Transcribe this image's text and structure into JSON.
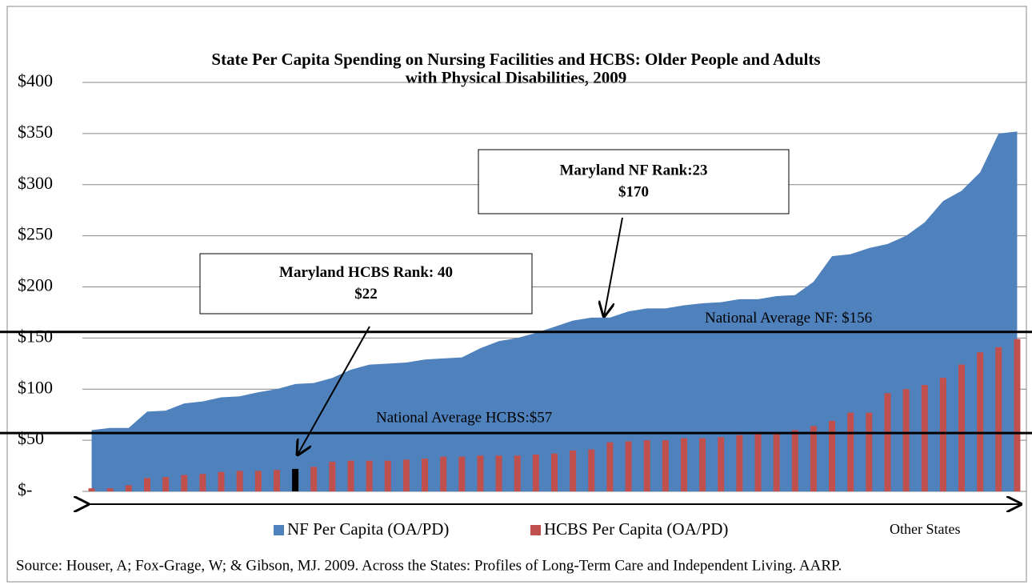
{
  "chart_data": {
    "type": "area-bar",
    "title": [
      "State Per Capita Spending on Nursing Facilities and HCBS: Older People and Adults",
      "with Physical Disabilities, 2009"
    ],
    "categories": [
      null,
      null,
      null,
      null,
      null,
      null,
      null,
      null,
      null,
      null,
      null,
      null,
      null,
      null,
      null,
      null,
      null,
      null,
      null,
      null,
      null,
      null,
      null,
      null,
      null,
      null,
      null,
      null,
      null,
      null,
      null,
      null,
      null,
      null,
      null,
      null,
      null,
      null,
      null,
      null,
      null,
      null,
      null,
      null,
      null,
      null,
      null,
      null,
      null,
      null,
      null
    ],
    "series": [
      {
        "name": "NF Per Capita (OA/PD)",
        "color": "#4f81bd",
        "kind": "area",
        "values": [
          60,
          62,
          62,
          78,
          79,
          86,
          88,
          92,
          93,
          97,
          100,
          105,
          106,
          111,
          119,
          124,
          125,
          126,
          129,
          130,
          131,
          140,
          147,
          150,
          155,
          161,
          167,
          170,
          170,
          176,
          179,
          179,
          182,
          184,
          185,
          188,
          188,
          191,
          192,
          205,
          230,
          232,
          238,
          242,
          250,
          263,
          284,
          294,
          312,
          350,
          352
        ]
      },
      {
        "name": "HCBS Per Capita (OA/PD)",
        "color": "#c0504d",
        "kind": "bar",
        "highlight_index": 11,
        "highlight_color": "#000000",
        "values": [
          3,
          3,
          6,
          13,
          14,
          16,
          17,
          19,
          20,
          20,
          21,
          22,
          24,
          29,
          30,
          30,
          30,
          31,
          32,
          34,
          34,
          35,
          35,
          35,
          36,
          37,
          40,
          41,
          48,
          49,
          50,
          50,
          52,
          52,
          53,
          55,
          56,
          58,
          60,
          64,
          69,
          77,
          77,
          96,
          100,
          104,
          111,
          124,
          136,
          141,
          149
        ]
      }
    ],
    "ylim": [
      0,
      400
    ],
    "yticks": [
      {
        "value": 0,
        "label": "$-"
      },
      {
        "value": 50,
        "label": "$50"
      },
      {
        "value": 100,
        "label": "$100"
      },
      {
        "value": 150,
        "label": "$150"
      },
      {
        "value": 200,
        "label": "$200"
      },
      {
        "value": 250,
        "label": "$250"
      },
      {
        "value": 300,
        "label": "$300"
      },
      {
        "value": 350,
        "label": "$350"
      },
      {
        "value": 400,
        "label": "$400"
      }
    ],
    "grid": true,
    "reference_lines": [
      {
        "value": 156,
        "label": "National Average NF: $156"
      },
      {
        "value": 57,
        "label": "National Average HCBS:$57"
      }
    ],
    "annotations": [
      {
        "lines": [
          "Maryland NF Rank:23",
          "$170"
        ]
      },
      {
        "lines": [
          "Maryland HCBS Rank: 40",
          "$22"
        ]
      }
    ],
    "x_label": "Other States",
    "legend": "bottom",
    "source": "Source: Houser, A; Fox-Grage, W; & Gibson, MJ. 2009. Across the States: Profiles of Long-Term Care and Independent Living. AARP."
  }
}
